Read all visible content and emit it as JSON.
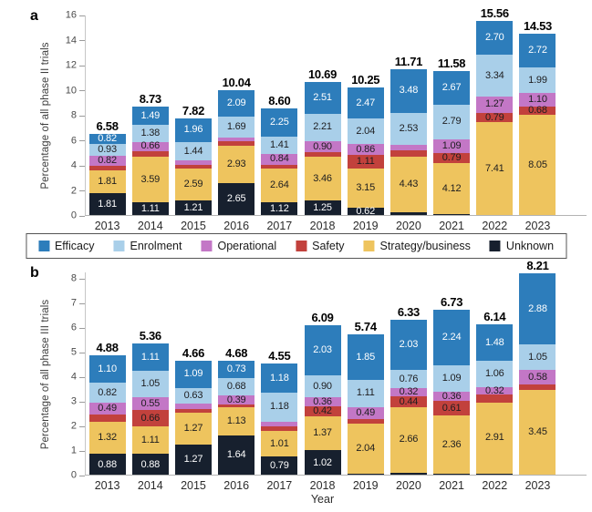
{
  "figure": {
    "xlabel": "Year",
    "legend": {
      "items": [
        {
          "label": "Efficacy",
          "color": "#2d7dbb"
        },
        {
          "label": "Enrolment",
          "color": "#a9cfe9"
        },
        {
          "label": "Operational",
          "color": "#c377c6"
        },
        {
          "label": "Safety",
          "color": "#c2413c"
        },
        {
          "label": "Strategy/business",
          "color": "#eec45e"
        },
        {
          "label": "Unknown",
          "color": "#17202e"
        }
      ]
    }
  },
  "chart_data": [
    {
      "id": "a",
      "type": "bar",
      "stacked": true,
      "panel_label": "a",
      "title": "",
      "ylabel": "Percentage of all phase II trials",
      "xlabel": "",
      "ylim": [
        0,
        16
      ],
      "yticks": [
        0,
        2,
        4,
        6,
        8,
        10,
        12,
        14,
        16
      ],
      "grid": false,
      "legend_position": "below-panel-a",
      "categories": [
        "2013",
        "2014",
        "2015",
        "2016",
        "2017",
        "2018",
        "2019",
        "2020",
        "2021",
        "2022",
        "2023"
      ],
      "totals": [
        6.58,
        8.73,
        7.82,
        10.04,
        8.6,
        10.69,
        10.25,
        11.71,
        11.58,
        15.56,
        14.53
      ],
      "total_labels": [
        "6.58",
        "8.73",
        "7.82",
        "10.04",
        "8.60",
        "10.69",
        "10.25",
        "11.71",
        "11.58",
        "15.56",
        "14.53"
      ],
      "stack_order_note": "series listed top-to-bottom of each stacked bar; unlabeled thin segments estimated from bar totals",
      "series": [
        {
          "name": "Efficacy",
          "color": "#2d7dbb",
          "text": "#ffffff",
          "values": [
            0.82,
            1.49,
            1.96,
            2.09,
            2.25,
            2.51,
            2.47,
            3.48,
            2.67,
            2.7,
            2.72
          ],
          "labels": [
            "0.82",
            "1.49",
            "1.96",
            "2.09",
            "2.25",
            "2.51",
            "2.47",
            "3.48",
            "2.67",
            "2.70",
            "2.72"
          ]
        },
        {
          "name": "Enrolment",
          "color": "#a9cfe9",
          "text": "#1d1d1f",
          "values": [
            0.93,
            1.38,
            1.44,
            1.69,
            1.41,
            2.21,
            2.04,
            2.53,
            2.79,
            3.34,
            1.99
          ],
          "labels": [
            "0.93",
            "1.38",
            "1.44",
            "1.69",
            "1.41",
            "2.21",
            "2.04",
            "2.53",
            "2.79",
            "3.34",
            "1.99"
          ]
        },
        {
          "name": "Operational",
          "color": "#c377c6",
          "text": "#1d1d1f",
          "values": [
            0.82,
            0.66,
            0.32,
            0.33,
            0.84,
            0.9,
            0.86,
            0.45,
            1.09,
            1.27,
            1.1
          ],
          "labels": [
            "0.82",
            "0.66",
            "",
            "",
            "0.84",
            "0.90",
            "0.86",
            "",
            "1.09",
            "1.27",
            "1.10"
          ]
        },
        {
          "name": "Safety",
          "color": "#c2413c",
          "text": "#1d1d1f",
          "values": [
            0.39,
            0.5,
            0.3,
            0.35,
            0.34,
            0.36,
            1.11,
            0.5,
            0.79,
            0.79,
            0.68
          ],
          "labels": [
            "",
            "",
            "",
            "",
            "",
            "",
            "1.11",
            "",
            "0.79",
            "0.79",
            "0.68"
          ]
        },
        {
          "name": "Strategy/business",
          "color": "#eec45e",
          "text": "#1d1d1f",
          "values": [
            1.81,
            3.59,
            2.59,
            2.93,
            2.64,
            3.46,
            3.15,
            4.43,
            4.12,
            7.41,
            8.05
          ],
          "labels": [
            "1.81",
            "3.59",
            "2.59",
            "2.93",
            "2.64",
            "3.46",
            "3.15",
            "4.43",
            "4.12",
            "7.41",
            "8.05"
          ]
        },
        {
          "name": "Unknown",
          "color": "#17202e",
          "text": "#ffffff",
          "values": [
            1.81,
            1.11,
            1.21,
            2.65,
            1.12,
            1.25,
            0.62,
            0.32,
            0.12,
            0.05,
            0.0
          ],
          "labels": [
            "1.81",
            "1.11",
            "1.21",
            "2.65",
            "1.12",
            "1.25",
            "0.62",
            "",
            "",
            "",
            ""
          ]
        }
      ]
    },
    {
      "id": "b",
      "type": "bar",
      "stacked": true,
      "panel_label": "b",
      "title": "",
      "ylabel": "Percentage of all phase III trials",
      "xlabel": "Year",
      "ylim": [
        0,
        8
      ],
      "yticks": [
        0,
        1,
        2,
        3,
        4,
        5,
        6,
        7,
        8
      ],
      "grid": false,
      "categories": [
        "2013",
        "2014",
        "2015",
        "2016",
        "2017",
        "2018",
        "2019",
        "2020",
        "2021",
        "2022",
        "2023"
      ],
      "totals": [
        4.88,
        5.36,
        4.66,
        4.68,
        4.55,
        6.09,
        5.74,
        6.33,
        6.73,
        6.14,
        8.21
      ],
      "total_labels": [
        "4.88",
        "5.36",
        "4.66",
        "4.68",
        "4.55",
        "6.09",
        "5.74",
        "6.33",
        "6.73",
        "6.14",
        "8.21"
      ],
      "stack_order_note": "series listed top-to-bottom of each stacked bar; unlabeled thin segments estimated from bar totals",
      "series": [
        {
          "name": "Efficacy",
          "color": "#2d7dbb",
          "text": "#ffffff",
          "values": [
            1.1,
            1.11,
            1.09,
            0.73,
            1.18,
            2.03,
            1.85,
            2.03,
            2.24,
            1.48,
            2.88
          ],
          "labels": [
            "1.10",
            "1.11",
            "1.09",
            "0.73",
            "1.18",
            "2.03",
            "1.85",
            "2.03",
            "2.24",
            "1.48",
            "2.88"
          ]
        },
        {
          "name": "Enrolment",
          "color": "#a9cfe9",
          "text": "#1d1d1f",
          "values": [
            0.82,
            1.05,
            0.63,
            0.68,
            1.18,
            0.9,
            1.11,
            0.76,
            1.09,
            1.06,
            1.05
          ],
          "labels": [
            "0.82",
            "1.05",
            "0.63",
            "0.68",
            "1.18",
            "0.90",
            "1.11",
            "0.76",
            "1.09",
            "1.06",
            "1.05"
          ]
        },
        {
          "name": "Operational",
          "color": "#c377c6",
          "text": "#1d1d1f",
          "values": [
            0.49,
            0.55,
            0.22,
            0.39,
            0.2,
            0.36,
            0.49,
            0.32,
            0.36,
            0.32,
            0.58
          ],
          "labels": [
            "0.49",
            "0.55",
            "",
            "0.39",
            "",
            "0.36",
            "0.49",
            "0.32",
            "0.36",
            "0.32",
            "0.58"
          ]
        },
        {
          "name": "Safety",
          "color": "#c2413c",
          "text": "#1d1d1f",
          "values": [
            0.27,
            0.66,
            0.18,
            0.11,
            0.19,
            0.42,
            0.19,
            0.44,
            0.61,
            0.3,
            0.2
          ],
          "labels": [
            "",
            "0.66",
            "",
            "",
            "",
            "0.42",
            "",
            "0.44",
            "0.61",
            "",
            ""
          ]
        },
        {
          "name": "Strategy/business",
          "color": "#eec45e",
          "text": "#1d1d1f",
          "values": [
            1.32,
            1.11,
            1.27,
            1.13,
            1.01,
            1.37,
            2.04,
            2.66,
            2.36,
            2.91,
            3.45
          ],
          "labels": [
            "1.32",
            "1.11",
            "1.27",
            "1.13",
            "1.01",
            "1.37",
            "2.04",
            "2.66",
            "2.36",
            "2.91",
            "3.45"
          ]
        },
        {
          "name": "Unknown",
          "color": "#17202e",
          "text": "#ffffff",
          "values": [
            0.88,
            0.88,
            1.27,
            1.64,
            0.79,
            1.02,
            0.06,
            0.12,
            0.07,
            0.07,
            0.05
          ],
          "labels": [
            "0.88",
            "0.88",
            "1.27",
            "1.64",
            "0.79",
            "1.02",
            "",
            "",
            "",
            "",
            ""
          ]
        }
      ]
    }
  ]
}
